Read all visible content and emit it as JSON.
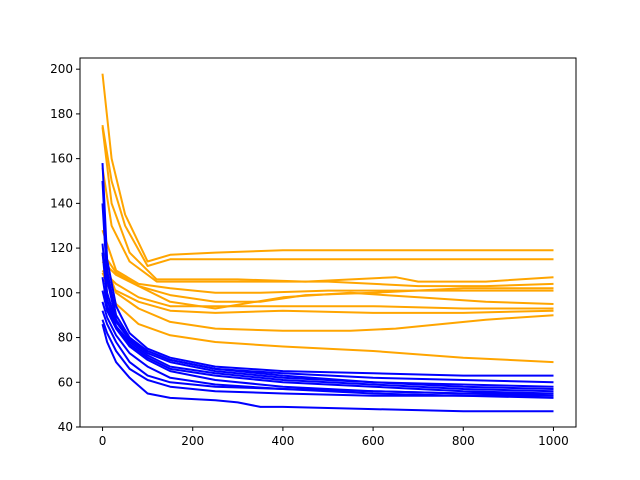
{
  "chart_data": {
    "type": "line",
    "title": "",
    "xlabel": "",
    "ylabel": "",
    "xlim": [
      -50,
      1050
    ],
    "ylim": [
      40,
      205
    ],
    "xticks": [
      0,
      200,
      400,
      600,
      800,
      1000
    ],
    "yticks": [
      40,
      60,
      80,
      100,
      120,
      140,
      160,
      180,
      200
    ],
    "xtick_labels": [
      "0",
      "200",
      "400",
      "600",
      "800",
      "1000"
    ],
    "ytick_labels": [
      "40",
      "60",
      "80",
      "100",
      "120",
      "140",
      "160",
      "180",
      "200"
    ],
    "grid": false,
    "legend": "none",
    "colors": {
      "orange": "#FFA500",
      "blue": "#0000FF"
    },
    "series": [
      {
        "color": "orange",
        "x": [
          0,
          20,
          50,
          100,
          150,
          250,
          400,
          600,
          800,
          1000
        ],
        "y": [
          198,
          160,
          135,
          114,
          117,
          118,
          119,
          119,
          119,
          119
        ]
      },
      {
        "color": "orange",
        "x": [
          0,
          20,
          50,
          100,
          150,
          250,
          400,
          600,
          800,
          1000
        ],
        "y": [
          175,
          150,
          130,
          112,
          115,
          115,
          115,
          115,
          115,
          115
        ]
      },
      {
        "color": "orange",
        "x": [
          0,
          20,
          60,
          120,
          200,
          300,
          450,
          650,
          700,
          850,
          1000
        ],
        "y": [
          174,
          140,
          118,
          106,
          106,
          106,
          105,
          107,
          105,
          105,
          107
        ]
      },
      {
        "color": "orange",
        "x": [
          0,
          20,
          60,
          120,
          200,
          300,
          500,
          700,
          850,
          1000
        ],
        "y": [
          156,
          130,
          114,
          105,
          105,
          105,
          105,
          103,
          103,
          104
        ]
      },
      {
        "color": "orange",
        "x": [
          0,
          30,
          80,
          150,
          250,
          350,
          500,
          650,
          800,
          1000
        ],
        "y": [
          128,
          110,
          104,
          102,
          100,
          100,
          101,
          101,
          101,
          101
        ]
      },
      {
        "color": "orange",
        "x": [
          0,
          30,
          80,
          150,
          250,
          350,
          450,
          600,
          800,
          1000
        ],
        "y": [
          114,
          108,
          103,
          99,
          96,
          96,
          99,
          100,
          102,
          102
        ]
      },
      {
        "color": "orange",
        "x": [
          0,
          30,
          80,
          150,
          250,
          400,
          550,
          700,
          850,
          1000
        ],
        "y": [
          118,
          109,
          103,
          96,
          93,
          98,
          100,
          98,
          96,
          95
        ]
      },
      {
        "color": "orange",
        "x": [
          0,
          30,
          80,
          150,
          250,
          400,
          600,
          800,
          1000
        ],
        "y": [
          110,
          104,
          98,
          94,
          94,
          94,
          94,
          93,
          93
        ]
      },
      {
        "color": "orange",
        "x": [
          0,
          30,
          80,
          150,
          250,
          400,
          600,
          800,
          1000
        ],
        "y": [
          106,
          101,
          96,
          92,
          91,
          92,
          91,
          91,
          92
        ]
      },
      {
        "color": "orange",
        "x": [
          0,
          30,
          80,
          150,
          250,
          400,
          550,
          650,
          700,
          850,
          1000
        ],
        "y": [
          117,
          100,
          93,
          87,
          84,
          83,
          83,
          84,
          85,
          88,
          90
        ]
      },
      {
        "color": "orange",
        "x": [
          0,
          30,
          80,
          150,
          250,
          400,
          600,
          800,
          1000
        ],
        "y": [
          109,
          95,
          86,
          81,
          78,
          76,
          74,
          71,
          69
        ]
      },
      {
        "color": "blue",
        "x": [
          0,
          10,
          30,
          60,
          100,
          150,
          250,
          400,
          600,
          800,
          1000
        ],
        "y": [
          158,
          115,
          94,
          82,
          75,
          71,
          67,
          65,
          64,
          63,
          63
        ]
      },
      {
        "color": "blue",
        "x": [
          0,
          10,
          30,
          60,
          100,
          150,
          250,
          400,
          600,
          800,
          1000
        ],
        "y": [
          150,
          110,
          90,
          80,
          74,
          70,
          66,
          64,
          62,
          61,
          60
        ]
      },
      {
        "color": "blue",
        "x": [
          0,
          10,
          30,
          60,
          100,
          150,
          250,
          400,
          600,
          800,
          1000
        ],
        "y": [
          140,
          106,
          88,
          79,
          74,
          70,
          66,
          63,
          60,
          59,
          58
        ]
      },
      {
        "color": "blue",
        "x": [
          0,
          10,
          30,
          60,
          100,
          150,
          250,
          400,
          600,
          800,
          1000
        ],
        "y": [
          122,
          100,
          87,
          79,
          73,
          69,
          65,
          62,
          60,
          58,
          57
        ]
      },
      {
        "color": "blue",
        "x": [
          0,
          10,
          30,
          60,
          100,
          150,
          250,
          400,
          600,
          800,
          1000
        ],
        "y": [
          118,
          97,
          85,
          78,
          72,
          67,
          64,
          61,
          59,
          57,
          56
        ]
      },
      {
        "color": "blue",
        "x": [
          0,
          10,
          30,
          60,
          100,
          150,
          250,
          400,
          600,
          800,
          1000
        ],
        "y": [
          107,
          94,
          85,
          77,
          71,
          66,
          63,
          60,
          58,
          56,
          55
        ]
      },
      {
        "color": "blue",
        "x": [
          0,
          10,
          30,
          60,
          100,
          150,
          250,
          400,
          600,
          800,
          1000
        ],
        "y": [
          101,
          92,
          84,
          76,
          70,
          65,
          61,
          58,
          56,
          55,
          54
        ]
      },
      {
        "color": "blue",
        "x": [
          0,
          10,
          30,
          60,
          100,
          150,
          250,
          400,
          600,
          800,
          1000
        ],
        "y": [
          96,
          89,
          81,
          73,
          67,
          62,
          59,
          57,
          55,
          54,
          53
        ]
      },
      {
        "color": "blue",
        "x": [
          0,
          10,
          30,
          60,
          100,
          150,
          250,
          400,
          600,
          800,
          1000
        ],
        "y": [
          92,
          86,
          78,
          69,
          63,
          60,
          58,
          57,
          56,
          55,
          55
        ]
      },
      {
        "color": "blue",
        "x": [
          0,
          10,
          30,
          60,
          100,
          150,
          250,
          400,
          600,
          800,
          1000
        ],
        "y": [
          88,
          82,
          74,
          66,
          61,
          58,
          56,
          55,
          54,
          54,
          54
        ]
      },
      {
        "color": "blue",
        "x": [
          0,
          10,
          30,
          60,
          100,
          150,
          250,
          300,
          350,
          400,
          600,
          800,
          1000
        ],
        "y": [
          86,
          78,
          69,
          62,
          55,
          53,
          52,
          51,
          49,
          49,
          48,
          47,
          47
        ]
      }
    ]
  }
}
